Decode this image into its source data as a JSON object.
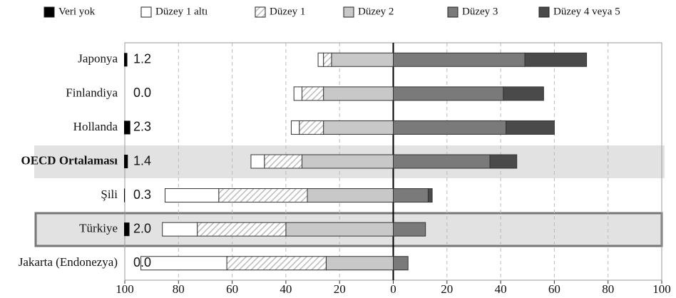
{
  "chart_data": {
    "type": "diverging-bar",
    "categories": [
      "Japonya",
      "Finlandiya",
      "Hollanda",
      "OECD Ortalaması",
      "Şili",
      "Türkiye",
      "Jakarta (Endonezya)"
    ],
    "series": [
      {
        "name": "Veri yok",
        "color": "#000000",
        "values": [
          1.2,
          0,
          2.3,
          1.4,
          0.3,
          2,
          0
        ],
        "value_labels": [
          "1.2",
          "0.0",
          "2.3",
          "1.4",
          "0.3",
          "2.0",
          "0.0"
        ]
      },
      {
        "name": "Düzey 1 altı",
        "color": "#ffffff",
        "values": [
          -2,
          -3,
          -3,
          -5,
          -20,
          -13,
          -32
        ]
      },
      {
        "name": "Düzey 1",
        "color": "#ffffff",
        "pattern": "hatch",
        "values": [
          -3,
          -8,
          -9,
          -14,
          -33,
          -33,
          -37
        ]
      },
      {
        "name": "Düzey 2",
        "color": "#c8c8c8",
        "values": [
          -23,
          -26,
          -26,
          -34,
          -32,
          -40,
          -25
        ]
      },
      {
        "name": "Düzey 3",
        "color": "#7a7a7a",
        "values": [
          49,
          41,
          42,
          36,
          13,
          12,
          5.5
        ]
      },
      {
        "name": "Düzey 4 veya 5",
        "color": "#4a4a4a",
        "values": [
          23,
          15,
          18,
          10,
          1.5,
          0,
          0
        ]
      }
    ],
    "xlim": [
      -100,
      100
    ],
    "xticks": [
      {
        "value": -100,
        "label": "100"
      },
      {
        "value": -80,
        "label": "80"
      },
      {
        "value": -60,
        "label": "60"
      },
      {
        "value": -40,
        "label": "40"
      },
      {
        "value": -20,
        "label": "20"
      },
      0,
      20,
      40,
      60,
      80,
      100
    ],
    "grid": true
  }
}
